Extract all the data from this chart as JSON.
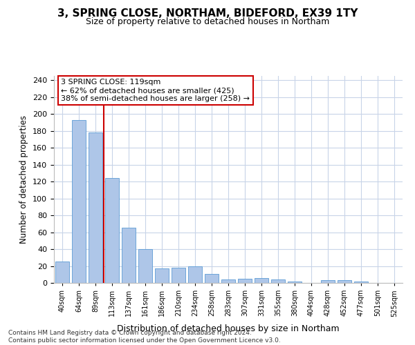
{
  "title": "3, SPRING CLOSE, NORTHAM, BIDEFORD, EX39 1TY",
  "subtitle": "Size of property relative to detached houses in Northam",
  "xlabel": "Distribution of detached houses by size in Northam",
  "ylabel": "Number of detached properties",
  "categories": [
    "40sqm",
    "64sqm",
    "89sqm",
    "113sqm",
    "137sqm",
    "161sqm",
    "186sqm",
    "210sqm",
    "234sqm",
    "258sqm",
    "283sqm",
    "307sqm",
    "331sqm",
    "355sqm",
    "380sqm",
    "404sqm",
    "428sqm",
    "452sqm",
    "477sqm",
    "501sqm",
    "525sqm"
  ],
  "values": [
    25,
    193,
    178,
    124,
    65,
    40,
    17,
    18,
    20,
    11,
    4,
    5,
    6,
    4,
    2,
    0,
    3,
    3,
    2,
    0,
    0
  ],
  "bar_color": "#aec6e8",
  "bar_edge_color": "#5b9bd5",
  "highlight_line_color": "#cc0000",
  "annotation_line1": "3 SPRING CLOSE: 119sqm",
  "annotation_line2": "← 62% of detached houses are smaller (425)",
  "annotation_line3": "38% of semi-detached houses are larger (258) →",
  "annotation_box_color": "#ffffff",
  "annotation_box_edge_color": "#cc0000",
  "ylim": [
    0,
    245
  ],
  "yticks": [
    0,
    20,
    40,
    60,
    80,
    100,
    120,
    140,
    160,
    180,
    200,
    220,
    240
  ],
  "bg_color": "#ffffff",
  "grid_color": "#c8d4e8",
  "footer": "Contains HM Land Registry data © Crown copyright and database right 2024.\nContains public sector information licensed under the Open Government Licence v3.0."
}
